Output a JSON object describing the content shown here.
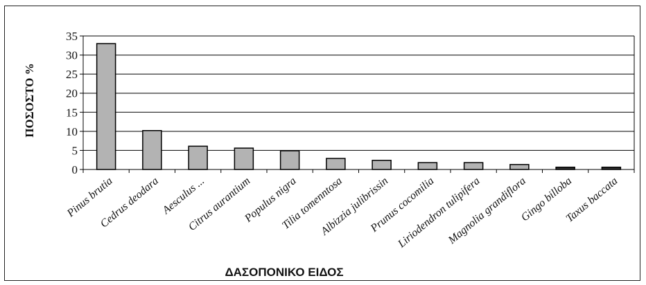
{
  "chart_data": {
    "type": "bar",
    "categories": [
      "Pinus brutia",
      "Cedrus deodara",
      "Aesculus ...",
      "Citrus aurantium",
      "Populus nigra",
      "Tilia tomenntosa",
      "Albizzia julibrissin",
      "Prunus cocomilia",
      "Liriodendron tulipifera",
      "Magnolia grandiflora",
      "Gingo billoba",
      "Taxus baccata"
    ],
    "values": [
      33,
      10.2,
      6.1,
      5.6,
      4.9,
      2.9,
      2.4,
      1.8,
      1.8,
      1.3,
      0.6,
      0.6
    ],
    "xlabel": "ΔΑΣΟΠΟΝΙΚΟ ΕΙΔΟΣ",
    "ylabel": "ΠΟΣΟΣΤΟ %",
    "ylim": [
      0,
      35
    ],
    "yticks": [
      "0",
      "5",
      "10",
      "15",
      "20",
      "25",
      "30",
      "35"
    ],
    "grid": true,
    "colors": {
      "bar": "#b3b3b3",
      "bar_dark": "#333333",
      "edge": "#000000"
    }
  }
}
